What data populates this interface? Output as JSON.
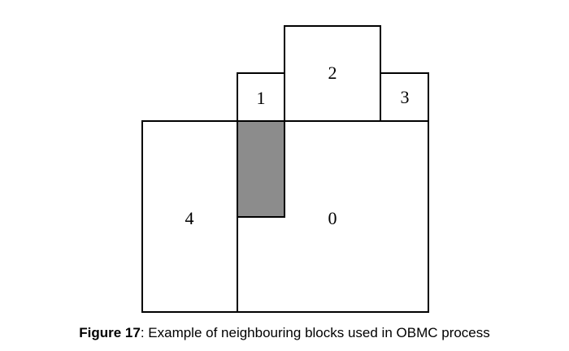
{
  "diagram": {
    "blocks": [
      {
        "label": "0"
      },
      {
        "label": "1"
      },
      {
        "label": "2"
      },
      {
        "label": "3"
      },
      {
        "label": "4"
      }
    ],
    "shaded_color": "#8c8c8c",
    "line_color": "#000000"
  },
  "caption": {
    "figure": "Figure 17",
    "separator": ":",
    "text": " Example of neighbouring blocks used in OBMC process"
  }
}
